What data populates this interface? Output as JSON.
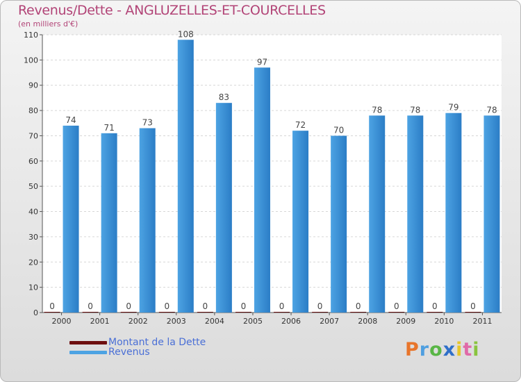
{
  "chart_data": {
    "type": "bar",
    "title": "Revenus/Dette - ANGLUZELLES-ET-COURCELLES",
    "subtitle": "(en milliers d'€)",
    "categories": [
      "2000",
      "2001",
      "2002",
      "2003",
      "2004",
      "2005",
      "2006",
      "2007",
      "2008",
      "2009",
      "2010",
      "2011"
    ],
    "series": [
      {
        "name": "Montant de la Dette",
        "color": "#6e0f0f",
        "values": [
          0,
          0,
          0,
          0,
          0,
          0,
          0,
          0,
          0,
          0,
          0,
          0
        ]
      },
      {
        "name": "Revenus",
        "color": "#4da3e3",
        "values": [
          74,
          71,
          73,
          108,
          83,
          97,
          72,
          70,
          78,
          78,
          79,
          78
        ]
      }
    ],
    "ylim": [
      0,
      110
    ],
    "yticks": [
      0,
      10,
      20,
      30,
      40,
      50,
      60,
      70,
      80,
      90,
      100,
      110
    ],
    "grid": true,
    "legend_position": "bottom-left"
  },
  "brand": {
    "letters": [
      "P",
      "r",
      "o",
      "x",
      "i",
      "t",
      "i"
    ],
    "colors": [
      "#e8752b",
      "#4f9fe0",
      "#59b646",
      "#2f6fc9",
      "#e6c62b",
      "#e06aa8",
      "#8ac43f"
    ]
  }
}
